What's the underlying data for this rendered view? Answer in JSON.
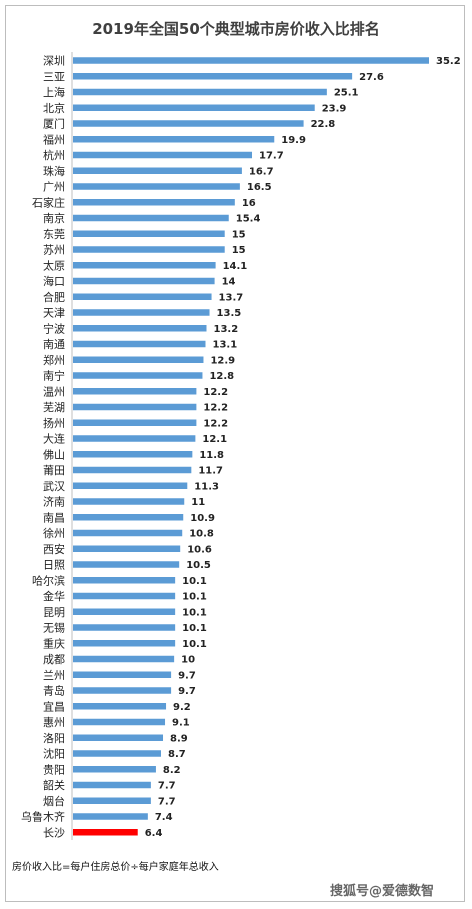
{
  "chart_data": {
    "type": "bar",
    "orientation": "horizontal",
    "title": "2019年全国50个典型城市房价收入比排名",
    "categories": [
      "深圳",
      "三亚",
      "上海",
      "北京",
      "厦门",
      "福州",
      "杭州",
      "珠海",
      "广州",
      "石家庄",
      "南京",
      "东莞",
      "苏州",
      "太原",
      "海口",
      "合肥",
      "天津",
      "宁波",
      "南通",
      "郑州",
      "南宁",
      "温州",
      "芜湖",
      "扬州",
      "大连",
      "佛山",
      "莆田",
      "武汉",
      "济南",
      "南昌",
      "徐州",
      "西安",
      "日照",
      "哈尔滨",
      "金华",
      "昆明",
      "无锡",
      "重庆",
      "成都",
      "兰州",
      "青岛",
      "宜昌",
      "惠州",
      "洛阳",
      "沈阳",
      "贵阳",
      "韶关",
      "烟台",
      "乌鲁木齐",
      "长沙"
    ],
    "values": [
      35.2,
      27.6,
      25.1,
      23.9,
      22.8,
      19.9,
      17.7,
      16.7,
      16.5,
      16,
      15.4,
      15,
      15,
      14.1,
      14,
      13.7,
      13.5,
      13.2,
      13.1,
      12.9,
      12.8,
      12.2,
      12.2,
      12.2,
      12.1,
      11.8,
      11.7,
      11.3,
      11,
      10.9,
      10.8,
      10.6,
      10.5,
      10.1,
      10.1,
      10.1,
      10.1,
      10.1,
      10,
      9.7,
      9.7,
      9.2,
      9.1,
      8.9,
      8.7,
      8.2,
      7.7,
      7.7,
      7.4,
      6.4
    ],
    "labels": [
      "35.2",
      "27.6",
      "25.1",
      "23.9",
      "22.8",
      "19.9",
      "17.7",
      "16.7",
      "16.5",
      "16",
      "15.4",
      "15",
      "15",
      "14.1",
      "14",
      "13.7",
      "13.5",
      "13.2",
      "13.1",
      "12.9",
      "12.8",
      "12.2",
      "12.2",
      "12.2",
      "12.1",
      "11.8",
      "11.7",
      "11.3",
      "11",
      "10.9",
      "10.8",
      "10.6",
      "10.5",
      "10.1",
      "10.1",
      "10.1",
      "10.1",
      "10.1",
      "10",
      "9.7",
      "9.7",
      "9.2",
      "9.1",
      "8.9",
      "8.7",
      "8.2",
      "7.7",
      "7.7",
      "7.4",
      "6.4"
    ],
    "highlight_category": "长沙",
    "colors": {
      "bar": "#5b9bd5",
      "highlight": "#ff0000"
    },
    "xlim": [
      0,
      35.2
    ],
    "grid": false,
    "legend": false
  },
  "footnote": "房价收入比=每户住房总价÷每户家庭年总收入",
  "watermark": "搜狐号@爱德数智"
}
